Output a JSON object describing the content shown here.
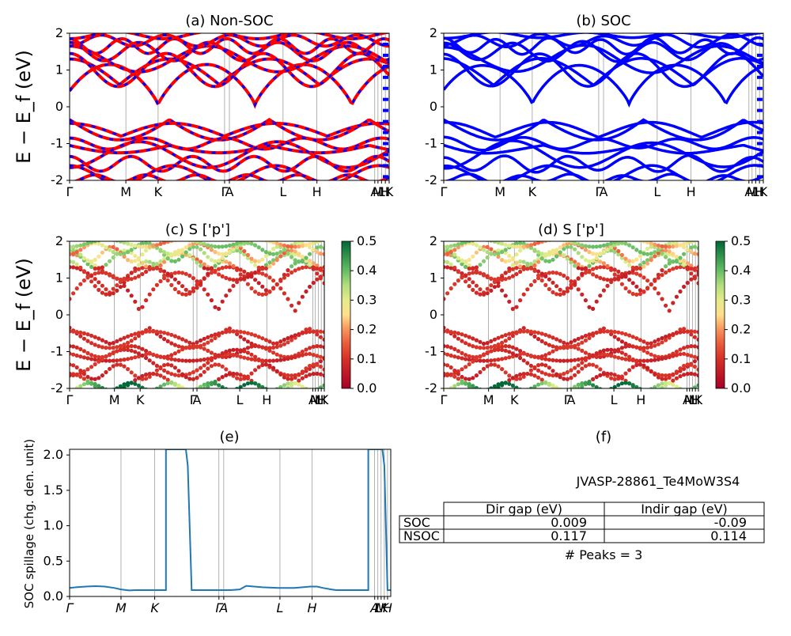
{
  "figure": {
    "ylabel": "E − E_f (eV)",
    "kpoint_labels": [
      "Γ",
      "M",
      "K",
      "Γ",
      "A",
      "L",
      "H",
      "A",
      "M",
      "L",
      "H",
      "K"
    ],
    "kpoint_labels_e": [
      "Γ",
      "M",
      "K",
      "Γ",
      "A",
      "L",
      "H",
      "A",
      "L",
      "M",
      "K",
      "H"
    ]
  },
  "chart_data": [
    {
      "id": "a",
      "type": "line",
      "title": "(a) Non-SOC",
      "ylim": [
        -2,
        2
      ],
      "yticks": [
        -2,
        -1,
        0,
        1,
        2
      ],
      "series": [],
      "colors": {
        "primary": "#ff0000",
        "secondary": "#0000ff"
      }
    },
    {
      "id": "b",
      "type": "line",
      "title": "(b) SOC",
      "ylim": [
        -2,
        2
      ],
      "yticks": [
        -2,
        -1,
        0,
        1,
        2
      ],
      "series": [],
      "colors": {
        "primary": "#0000ff"
      }
    },
    {
      "id": "c",
      "type": "scatter",
      "title": "(c)  S ['p']",
      "ylim": [
        -2,
        2
      ],
      "yticks": [
        -2,
        -1,
        0,
        1,
        2
      ],
      "colorbar": {
        "min": 0.0,
        "max": 0.5,
        "ticks": [
          "0.0",
          "0.1",
          "0.2",
          "0.3",
          "0.4",
          "0.5"
        ],
        "colormap": "RdYlGn"
      }
    },
    {
      "id": "d",
      "type": "scatter",
      "title": "(d) S ['p']",
      "ylim": [
        -2,
        2
      ],
      "yticks": [
        -2,
        -1,
        0,
        1,
        2
      ],
      "colorbar": {
        "min": 0.0,
        "max": 0.5,
        "ticks": [
          "0.0",
          "0.1",
          "0.2",
          "0.3",
          "0.4",
          "0.5"
        ],
        "colormap": "RdYlGn"
      }
    },
    {
      "id": "e",
      "type": "line",
      "title": "(e)",
      "ylabel": "SOC spillage (chg. den. unit)",
      "ylim": [
        0,
        2.08
      ],
      "yticks": [
        "0.0",
        "0.5",
        "1.0",
        "1.5",
        "2.0"
      ],
      "x": [
        0,
        0.02,
        0.05,
        0.08,
        0.11,
        0.14,
        0.16,
        0.185,
        0.205,
        0.23,
        0.3,
        0.3,
        0.362,
        0.368,
        0.38,
        0.5,
        0.53,
        0.55,
        0.6,
        0.65,
        0.7,
        0.75,
        0.77,
        0.79,
        0.815,
        0.83,
        0.85,
        0.93,
        0.93,
        0.974,
        0.98,
        0.99,
        1.0
      ],
      "values": [
        0.12,
        0.13,
        0.14,
        0.145,
        0.14,
        0.12,
        0.1,
        0.085,
        0.09,
        0.09,
        0.09,
        2.08,
        2.08,
        1.85,
        0.09,
        0.09,
        0.1,
        0.15,
        0.13,
        0.12,
        0.12,
        0.14,
        0.14,
        0.12,
        0.1,
        0.09,
        0.09,
        0.09,
        2.08,
        2.08,
        1.85,
        0.09,
        0.09
      ],
      "color": "#1f77b4"
    },
    {
      "id": "f",
      "type": "table",
      "title": "(f)",
      "subtitle": "JVASP-28861_Te4MoW3S4",
      "columns": [
        "",
        "Dir gap (eV)",
        "Indir gap (eV)"
      ],
      "rows": [
        [
          "SOC",
          "0.009",
          "-0.09"
        ],
        [
          "NSOC",
          "0.117",
          "0.114"
        ]
      ],
      "note": "# Peaks = 3"
    }
  ]
}
